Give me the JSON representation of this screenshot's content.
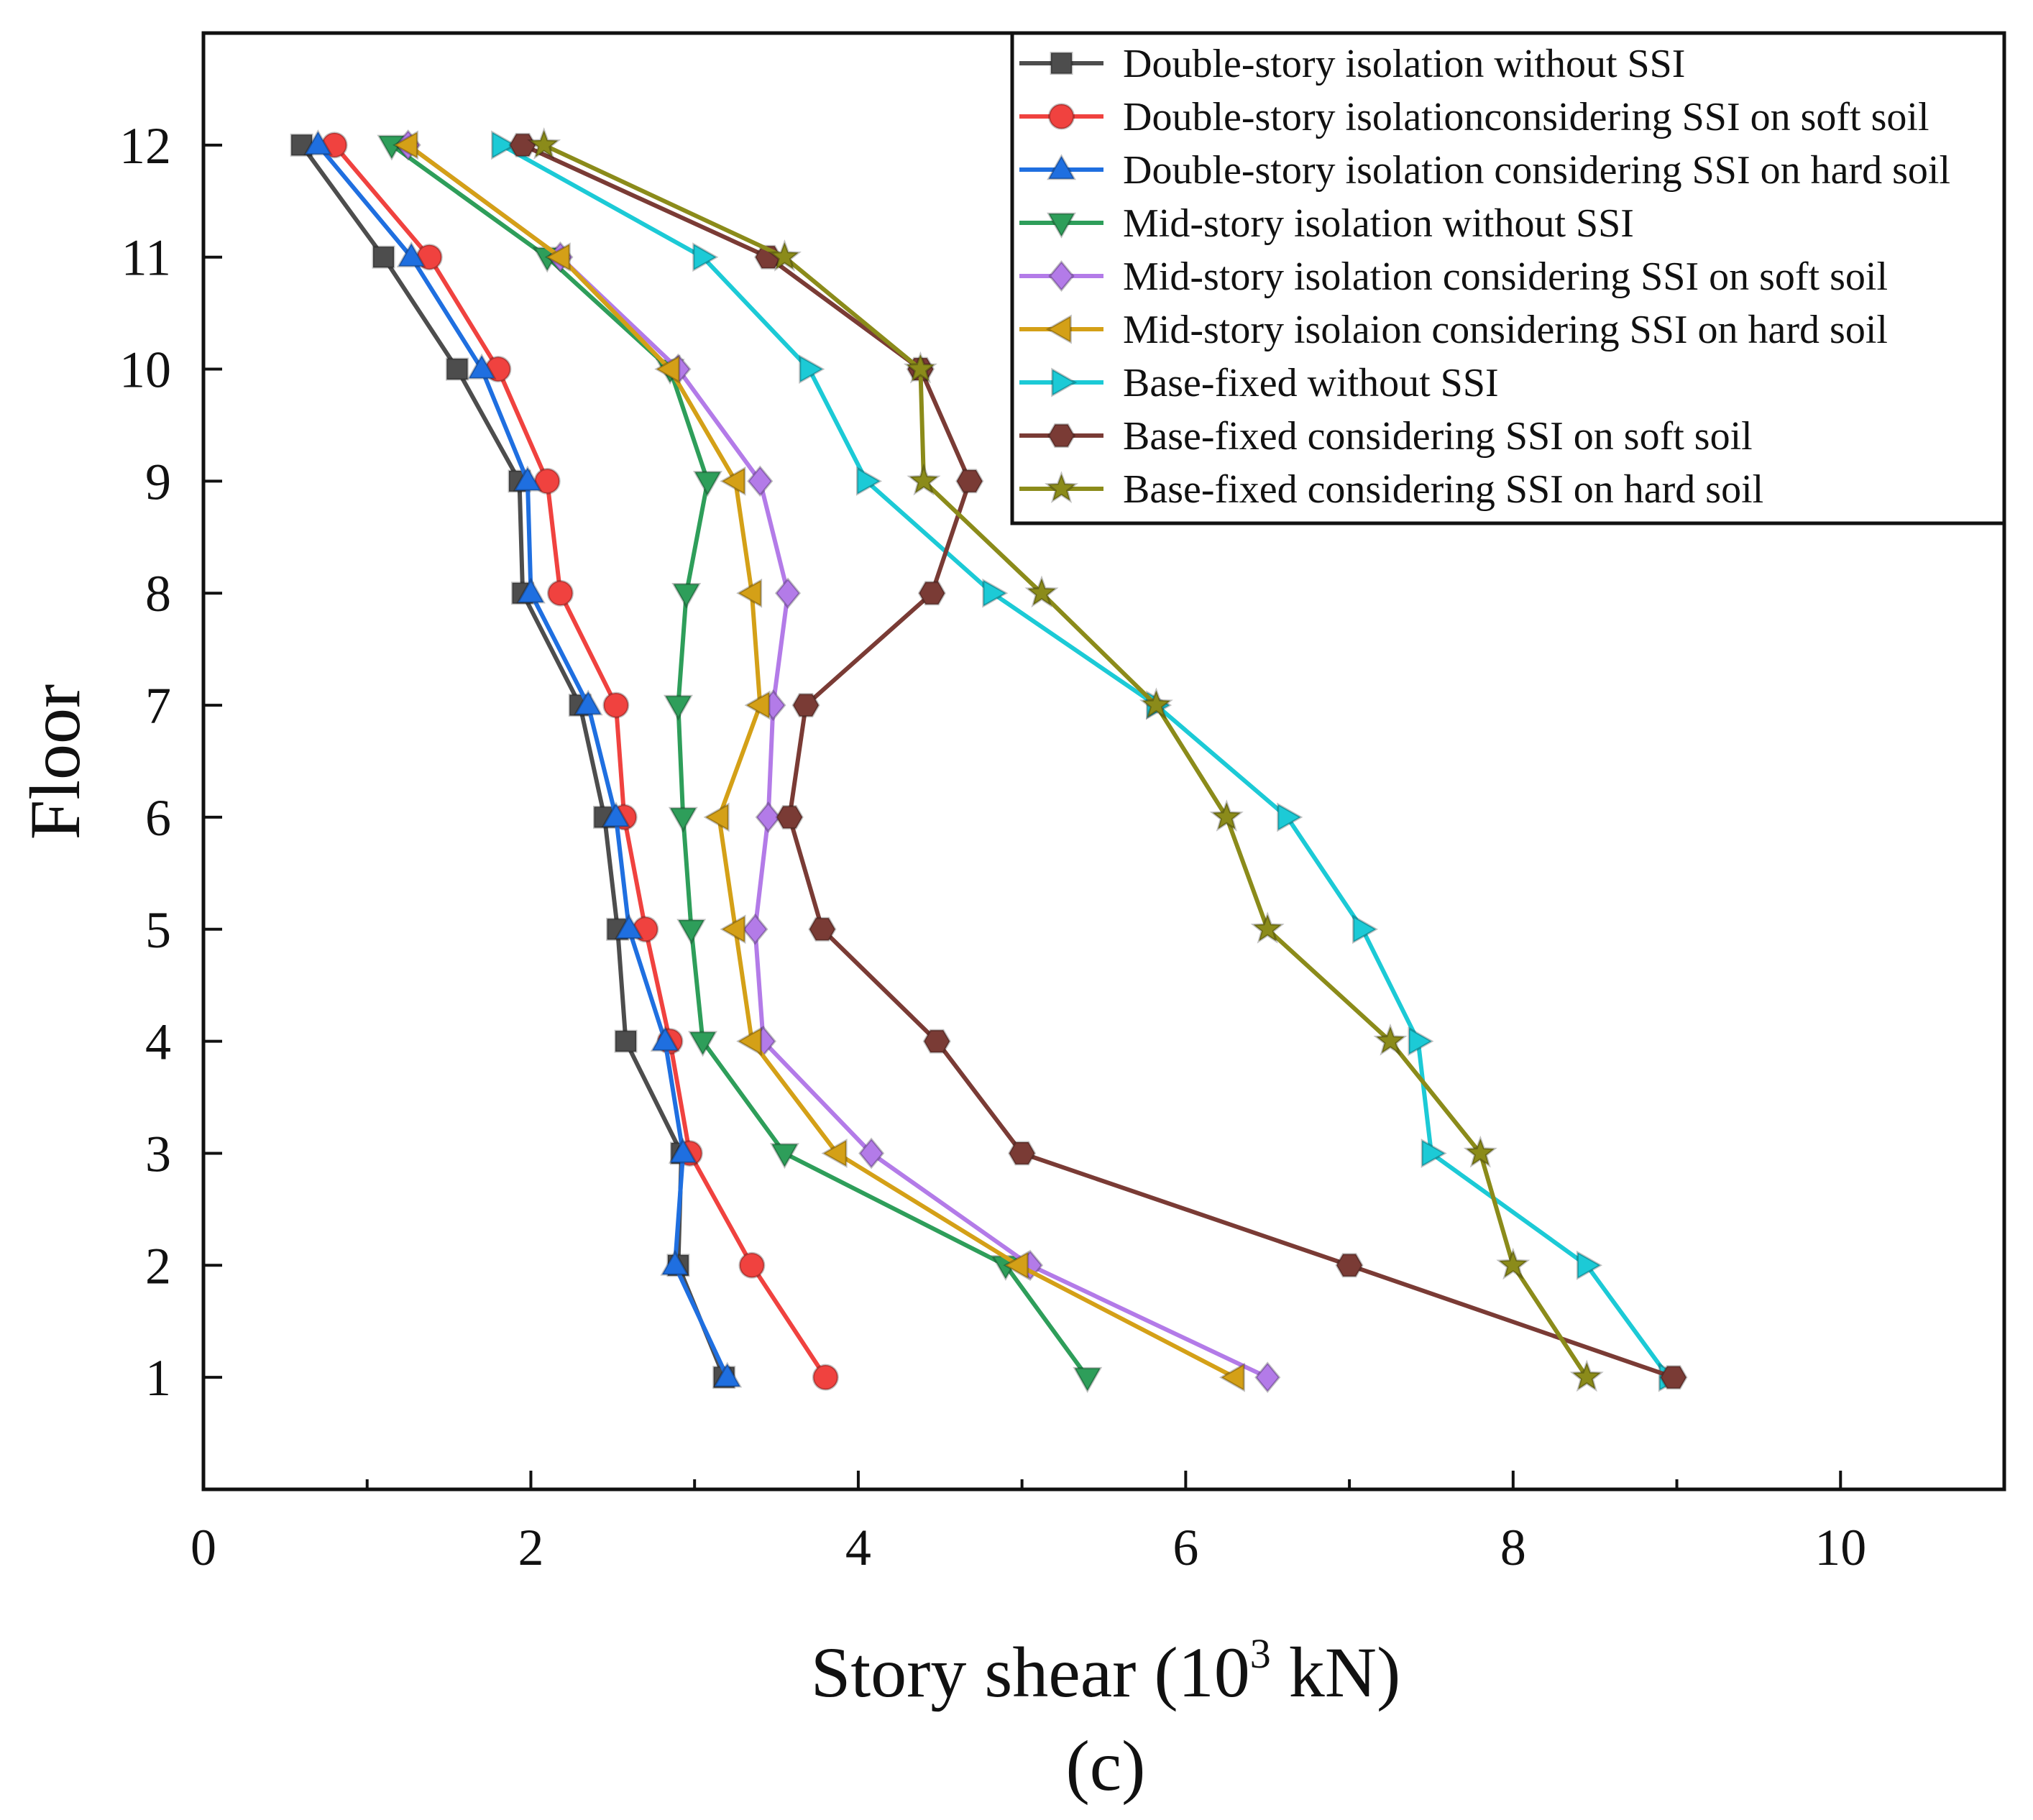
{
  "chart_data": {
    "type": "line",
    "title": "",
    "xlabel": "Story shear (10",
    "xlabel_sup": "3",
    "xlabel_unit": " kN)",
    "ylabel": "Floor",
    "caption": "(c)",
    "xlim": [
      0,
      11
    ],
    "ylim": [
      0,
      13
    ],
    "xticks": [
      0,
      2,
      4,
      6,
      8,
      10
    ],
    "yticks": [
      1,
      2,
      3,
      4,
      5,
      6,
      7,
      8,
      9,
      10,
      11,
      12
    ],
    "floors": [
      1,
      2,
      3,
      4,
      5,
      6,
      7,
      8,
      9,
      10,
      11,
      12
    ],
    "legend_position": "top-right",
    "series": [
      {
        "name": "Double-story isolation without SSI",
        "color": "#4d4d4d",
        "marker": "square",
        "values": [
          3.18,
          2.9,
          2.92,
          2.58,
          2.53,
          2.45,
          2.3,
          1.95,
          1.93,
          1.55,
          1.1,
          0.6
        ]
      },
      {
        "name": "Double-story isolationconsidering SSI on soft soil",
        "color": "#f0423f",
        "marker": "circle",
        "values": [
          3.8,
          3.35,
          2.97,
          2.85,
          2.7,
          2.57,
          2.52,
          2.18,
          2.1,
          1.8,
          1.38,
          0.8
        ]
      },
      {
        "name": "Double-story isolation considering SSI on hard soil",
        "color": "#1f6fe0",
        "marker": "triangle-up",
        "values": [
          3.2,
          2.88,
          2.93,
          2.82,
          2.6,
          2.52,
          2.35,
          2.0,
          1.98,
          1.7,
          1.27,
          0.7
        ]
      },
      {
        "name": "Mid-story isolation without SSI",
        "color": "#2e9e5a",
        "marker": "triangle-down",
        "values": [
          5.4,
          4.9,
          3.55,
          3.05,
          2.98,
          2.93,
          2.9,
          2.95,
          3.08,
          2.85,
          2.1,
          1.15
        ]
      },
      {
        "name": "Mid-story isolation considering SSI on soft soil",
        "color": "#b37be8",
        "marker": "diamond",
        "values": [
          6.5,
          5.05,
          4.08,
          3.42,
          3.37,
          3.45,
          3.48,
          3.57,
          3.4,
          2.9,
          2.18,
          1.25
        ]
      },
      {
        "name": "Mid-story isolaion considering SSI on hard soil",
        "color": "#d4a017",
        "marker": "triangle-left",
        "values": [
          6.3,
          4.98,
          3.87,
          3.35,
          3.25,
          3.15,
          3.4,
          3.35,
          3.25,
          2.85,
          2.18,
          1.25
        ]
      },
      {
        "name": "Base-fixed without SSI",
        "color": "#1ccad6",
        "marker": "triangle-right",
        "values": [
          8.95,
          8.45,
          7.5,
          7.42,
          7.08,
          6.62,
          5.82,
          4.82,
          4.05,
          3.7,
          3.05,
          1.82
        ]
      },
      {
        "name": "Base-fixed considering SSI on soft soil",
        "color": "#7a3b35",
        "marker": "hexagon",
        "values": [
          8.98,
          7.0,
          5.0,
          4.48,
          3.78,
          3.58,
          3.68,
          4.45,
          4.68,
          4.38,
          3.45,
          1.95
        ]
      },
      {
        "name": "Base-fixed considering SSI on hard soil",
        "color": "#8b8b1a",
        "marker": "star",
        "values": [
          8.45,
          8.0,
          7.8,
          7.25,
          6.5,
          6.25,
          5.82,
          5.12,
          4.4,
          4.38,
          3.55,
          2.08
        ]
      }
    ]
  }
}
